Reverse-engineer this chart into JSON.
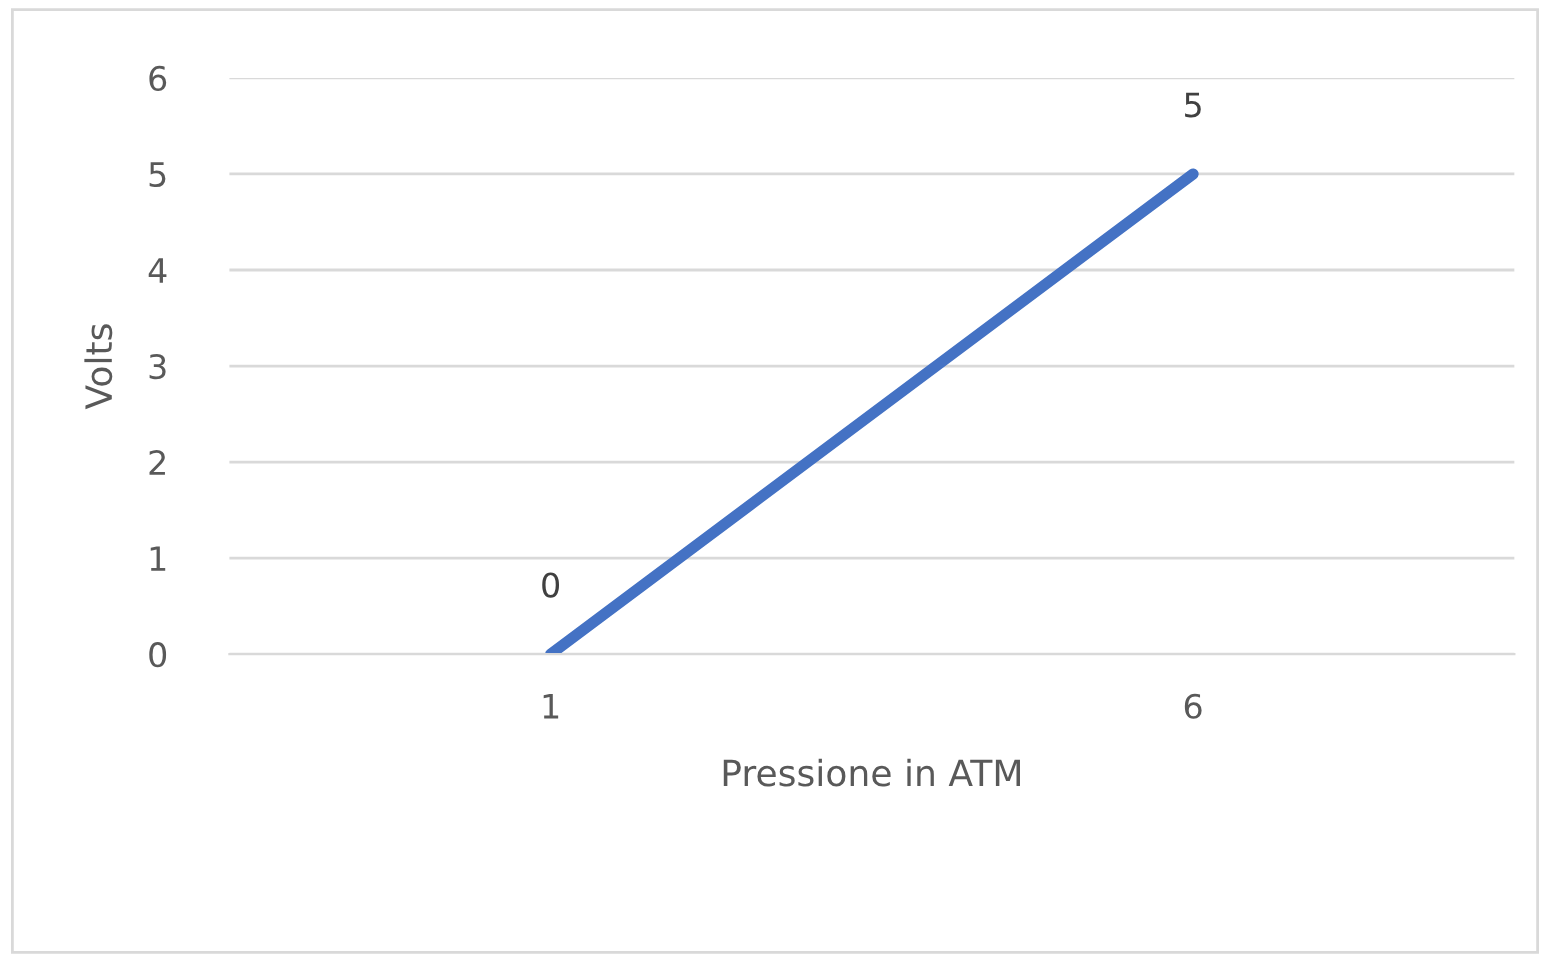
{
  "chart_data": {
    "type": "line",
    "xlabel": "Pressione in ATM",
    "ylabel": "Volts",
    "categories": [
      "1",
      "6"
    ],
    "series": [
      {
        "color": "#4472c4",
        "values": [
          0,
          5
        ]
      }
    ],
    "ylim": [
      0,
      6
    ],
    "yticks": [
      0,
      1,
      2,
      3,
      4,
      5,
      6
    ],
    "grid": "y",
    "data_labels": true,
    "marker": "none",
    "line_style": "solid"
  }
}
